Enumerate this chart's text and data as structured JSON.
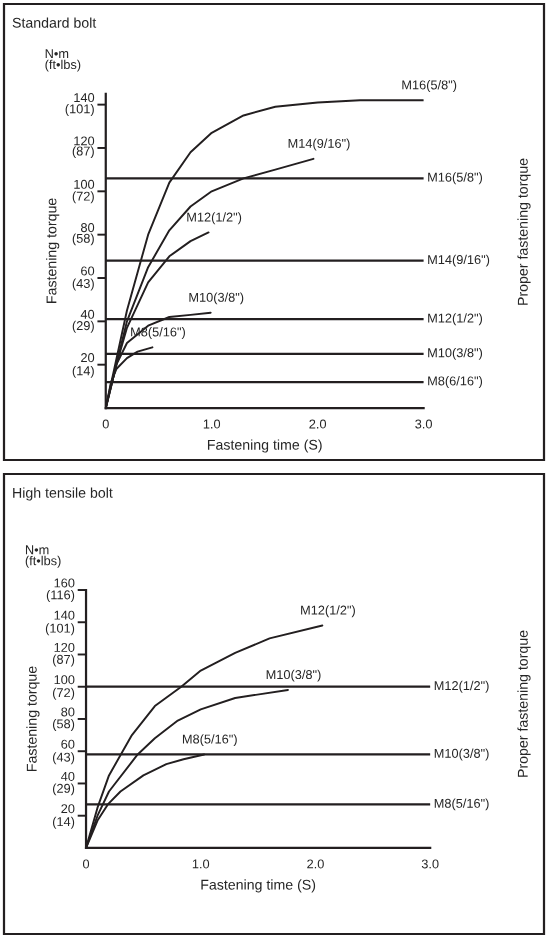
{
  "chart_data": [
    {
      "type": "line",
      "title": "Standard bolt",
      "xlabel": "Fastening time (S)",
      "y2label": "Fastening torque",
      "annotations": [
        "N•m\n(ft•lbs)",
        "Proper fastening torque"
      ],
      "xlim": [
        0,
        3.0
      ],
      "ylim": [
        0,
        145
      ],
      "xticks": [
        0,
        {
          "value": 1.0,
          "label": "1.0"
        },
        {
          "value": 2.0,
          "label": "2.0"
        },
        {
          "value": 3.0,
          "label": "3.0"
        }
      ],
      "yticks": [
        20,
        40,
        60,
        80,
        100,
        120,
        140
      ],
      "y2lim": [
        0,
        104.4
      ],
      "y2ticks": [
        {
          "value": 14,
          "label": "(14)"
        },
        {
          "value": 29,
          "label": "(29)"
        },
        {
          "value": 43,
          "label": "(43)"
        },
        {
          "value": 58,
          "label": "(58)"
        },
        {
          "value": 72,
          "label": "(72)"
        },
        {
          "value": 87,
          "label": "(87)"
        },
        {
          "value": 101,
          "label": "(101)"
        }
      ],
      "grid": false,
      "legend": false,
      "marker": "none",
      "line_style": "solid",
      "series": [
        {
          "name": "M16(5/8\")",
          "color": "#231f20",
          "x": [
            0,
            0.2,
            0.4,
            0.6,
            0.8,
            1.0,
            1.3,
            1.6,
            2.0,
            2.4,
            3.0
          ],
          "values": [
            0,
            45,
            80,
            104,
            118,
            127,
            135,
            139,
            141,
            142,
            142
          ]
        },
        {
          "name": "M14(9/16\")",
          "color": "#231f20",
          "x": [
            0,
            0.2,
            0.4,
            0.6,
            0.8,
            1.0,
            1.3,
            1.6,
            1.96
          ],
          "values": [
            0,
            40,
            65,
            82,
            93,
            100,
            106,
            110,
            115
          ]
        },
        {
          "name": "M12(1/2\")",
          "color": "#231f20",
          "x": [
            0,
            0.1,
            0.2,
            0.4,
            0.6,
            0.8,
            0.97
          ],
          "values": [
            0,
            20,
            37,
            58,
            70,
            77,
            81
          ]
        },
        {
          "name": "M10(3/8\")",
          "color": "#231f20",
          "x": [
            0,
            0.1,
            0.2,
            0.4,
            0.6,
            0.8,
            0.99
          ],
          "values": [
            0,
            20,
            30,
            38,
            42,
            43,
            44
          ]
        },
        {
          "name": "M8(5/16\")",
          "color": "#231f20",
          "x": [
            0,
            0.05,
            0.1,
            0.2,
            0.3,
            0.44
          ],
          "values": [
            0,
            12,
            18,
            23,
            26,
            28
          ]
        }
      ],
      "ref_lines": [
        {
          "axis": "y",
          "value": 106,
          "label": "M16(5/8\")",
          "color": "#231f20"
        },
        {
          "axis": "y",
          "value": 68,
          "label": "M14(9/16\")",
          "color": "#231f20"
        },
        {
          "axis": "y",
          "value": 41,
          "label": "M12(1/2\")",
          "color": "#231f20"
        },
        {
          "axis": "y",
          "value": 25,
          "label": "M10(3/8\")",
          "color": "#231f20"
        },
        {
          "axis": "y",
          "value": 12,
          "label": "M8(6/16\")",
          "color": "#231f20"
        }
      ]
    },
    {
      "type": "line",
      "title": "High tensile bolt",
      "xlabel": "Fastening time (S)",
      "y2label": "Fastening torque",
      "annotations": [
        "N•m\n(ft•lbs)",
        "Proper fastening torque"
      ],
      "xlim": [
        0,
        3.0
      ],
      "ylim": [
        0,
        160
      ],
      "xticks": [
        0,
        {
          "value": 1.0,
          "label": "1.0"
        },
        {
          "value": 2.0,
          "label": "2.0"
        },
        {
          "value": 3.0,
          "label": "3.0"
        }
      ],
      "yticks": [
        20,
        40,
        60,
        80,
        100,
        120,
        140,
        160
      ],
      "y2lim": [
        0,
        116
      ],
      "y2ticks": [
        {
          "value": 14,
          "label": "(14)"
        },
        {
          "value": 29,
          "label": "(29)"
        },
        {
          "value": 43,
          "label": "(43)"
        },
        {
          "value": 58,
          "label": "(58)"
        },
        {
          "value": 72,
          "label": "(72)"
        },
        {
          "value": 87,
          "label": "(87)"
        },
        {
          "value": 101,
          "label": "(101)"
        },
        {
          "value": 116,
          "label": "(116)"
        }
      ],
      "grid": false,
      "legend": false,
      "marker": "none",
      "line_style": "solid",
      "series": [
        {
          "name": "M12(1/2\")",
          "color": "#231f20",
          "x": [
            0,
            0.1,
            0.2,
            0.4,
            0.6,
            0.83,
            1.0,
            1.3,
            1.6,
            2.06
          ],
          "values": [
            0,
            25,
            45,
            70,
            88,
            100,
            110,
            121,
            130,
            138
          ]
        },
        {
          "name": "M10(3/8\")",
          "color": "#231f20",
          "x": [
            0,
            0.1,
            0.2,
            0.45,
            0.6,
            0.8,
            1.0,
            1.3,
            1.76
          ],
          "values": [
            0,
            20,
            35,
            58,
            68,
            79,
            86,
            93,
            98
          ]
        },
        {
          "name": "M8(5/16\")",
          "color": "#231f20",
          "x": [
            0,
            0.1,
            0.19,
            0.3,
            0.5,
            0.7,
            0.85,
            1.03
          ],
          "values": [
            0,
            17,
            27,
            35,
            45,
            52,
            55,
            58
          ]
        }
      ],
      "ref_lines": [
        {
          "axis": "y",
          "value": 100,
          "label": "M12(1/2\")",
          "color": "#231f20"
        },
        {
          "axis": "y",
          "value": 58,
          "label": "M10(3/8\")",
          "color": "#231f20"
        },
        {
          "axis": "y",
          "value": 27,
          "label": "M8(5/16\")",
          "color": "#231f20"
        }
      ]
    }
  ]
}
